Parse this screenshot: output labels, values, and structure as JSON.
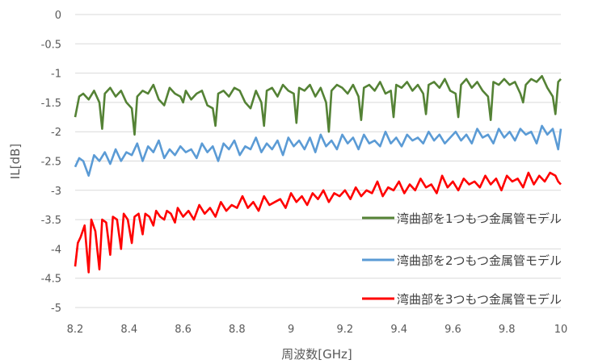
{
  "chart_data": {
    "type": "line",
    "xlabel": "周波数[GHz]",
    "ylabel": "IL[dB]",
    "xlim": [
      8.2,
      10
    ],
    "ylim": [
      -5,
      0
    ],
    "xticks": [
      "8.2",
      "8.4",
      "8.6",
      "8.8",
      "9",
      "9.2",
      "9.4",
      "9.6",
      "9.8",
      "10"
    ],
    "yticks": [
      "0",
      "-0.5",
      "-1",
      "-1.5",
      "-2",
      "-2.5",
      "-3",
      "-3.5",
      "-4",
      "-4.5",
      "-5"
    ],
    "grid": "horizontal",
    "legend_position": "bottom-right",
    "series": [
      {
        "name": "湾曲部を1つもつ金属管モデル",
        "color": "#548235",
        "x": [
          8.2,
          8.215,
          8.23,
          8.25,
          8.27,
          8.29,
          8.3,
          8.31,
          8.33,
          8.35,
          8.37,
          8.39,
          8.41,
          8.42,
          8.43,
          8.45,
          8.47,
          8.49,
          8.51,
          8.53,
          8.55,
          8.57,
          8.59,
          8.6,
          8.61,
          8.63,
          8.65,
          8.67,
          8.69,
          8.71,
          8.72,
          8.73,
          8.75,
          8.77,
          8.79,
          8.81,
          8.83,
          8.85,
          8.87,
          8.89,
          8.9,
          8.91,
          8.93,
          8.95,
          8.97,
          8.99,
          9.01,
          9.02,
          9.03,
          9.05,
          9.07,
          9.09,
          9.11,
          9.13,
          9.14,
          9.15,
          9.17,
          9.19,
          9.21,
          9.23,
          9.25,
          9.26,
          9.27,
          9.29,
          9.31,
          9.33,
          9.35,
          9.37,
          9.38,
          9.39,
          9.41,
          9.43,
          9.45,
          9.47,
          9.49,
          9.5,
          9.51,
          9.53,
          9.55,
          9.57,
          9.59,
          9.61,
          9.62,
          9.63,
          9.65,
          9.67,
          9.69,
          9.71,
          9.73,
          9.74,
          9.75,
          9.77,
          9.79,
          9.81,
          9.83,
          9.85,
          9.86,
          9.87,
          9.89,
          9.91,
          9.93,
          9.95,
          9.97,
          9.98,
          9.99,
          10.0
        ],
        "y": [
          -1.75,
          -1.4,
          -1.35,
          -1.45,
          -1.3,
          -1.5,
          -1.95,
          -1.35,
          -1.25,
          -1.4,
          -1.3,
          -1.5,
          -1.6,
          -2.05,
          -1.4,
          -1.3,
          -1.35,
          -1.2,
          -1.45,
          -1.55,
          -1.25,
          -1.35,
          -1.4,
          -1.5,
          -1.3,
          -1.45,
          -1.35,
          -1.3,
          -1.55,
          -1.6,
          -1.9,
          -1.35,
          -1.3,
          -1.4,
          -1.25,
          -1.3,
          -1.5,
          -1.6,
          -1.3,
          -1.5,
          -1.9,
          -1.3,
          -1.25,
          -1.4,
          -1.2,
          -1.3,
          -1.35,
          -1.85,
          -1.25,
          -1.3,
          -1.2,
          -1.4,
          -1.25,
          -1.5,
          -2.0,
          -1.3,
          -1.2,
          -1.25,
          -1.35,
          -1.2,
          -1.4,
          -1.8,
          -1.25,
          -1.2,
          -1.3,
          -1.15,
          -1.35,
          -1.3,
          -1.75,
          -1.2,
          -1.25,
          -1.15,
          -1.3,
          -1.2,
          -1.35,
          -1.7,
          -1.2,
          -1.15,
          -1.25,
          -1.1,
          -1.3,
          -1.35,
          -1.75,
          -1.2,
          -1.1,
          -1.25,
          -1.15,
          -1.3,
          -1.4,
          -1.8,
          -1.15,
          -1.2,
          -1.1,
          -1.2,
          -1.15,
          -1.35,
          -1.5,
          -1.2,
          -1.1,
          -1.15,
          -1.05,
          -1.25,
          -1.4,
          -1.7,
          -1.15,
          -1.1
        ]
      },
      {
        "name": "湾曲部を2つもつ金属管モデル",
        "color": "#5B9BD5",
        "x": [
          8.2,
          8.215,
          8.23,
          8.25,
          8.27,
          8.29,
          8.31,
          8.33,
          8.35,
          8.37,
          8.39,
          8.41,
          8.43,
          8.45,
          8.47,
          8.49,
          8.51,
          8.53,
          8.55,
          8.57,
          8.59,
          8.61,
          8.63,
          8.65,
          8.67,
          8.69,
          8.71,
          8.73,
          8.75,
          8.77,
          8.79,
          8.81,
          8.83,
          8.85,
          8.87,
          8.89,
          8.91,
          8.93,
          8.95,
          8.97,
          8.99,
          9.01,
          9.03,
          9.05,
          9.07,
          9.09,
          9.11,
          9.13,
          9.15,
          9.17,
          9.19,
          9.21,
          9.23,
          9.25,
          9.27,
          9.29,
          9.31,
          9.33,
          9.35,
          9.37,
          9.39,
          9.41,
          9.43,
          9.45,
          9.47,
          9.49,
          9.51,
          9.53,
          9.55,
          9.57,
          9.59,
          9.61,
          9.63,
          9.65,
          9.67,
          9.69,
          9.71,
          9.73,
          9.75,
          9.77,
          9.79,
          9.81,
          9.83,
          9.85,
          9.87,
          9.89,
          9.91,
          9.93,
          9.95,
          9.97,
          9.99,
          10.0
        ],
        "y": [
          -2.6,
          -2.45,
          -2.5,
          -2.75,
          -2.4,
          -2.5,
          -2.35,
          -2.55,
          -2.3,
          -2.5,
          -2.35,
          -2.4,
          -2.2,
          -2.5,
          -2.25,
          -2.35,
          -2.15,
          -2.45,
          -2.3,
          -2.4,
          -2.25,
          -2.35,
          -2.3,
          -2.45,
          -2.2,
          -2.35,
          -2.25,
          -2.5,
          -2.2,
          -2.3,
          -2.15,
          -2.4,
          -2.25,
          -2.3,
          -2.1,
          -2.35,
          -2.2,
          -2.3,
          -2.15,
          -2.4,
          -2.1,
          -2.25,
          -2.15,
          -2.3,
          -2.1,
          -2.35,
          -2.05,
          -2.25,
          -2.15,
          -2.3,
          -2.05,
          -2.2,
          -2.1,
          -2.3,
          -2.05,
          -2.2,
          -2.15,
          -2.25,
          -2.0,
          -2.2,
          -2.1,
          -2.25,
          -2.05,
          -2.15,
          -2.1,
          -2.2,
          -2.0,
          -2.15,
          -2.05,
          -2.2,
          -2.1,
          -2.0,
          -2.15,
          -2.05,
          -2.2,
          -1.95,
          -2.1,
          -2.05,
          -2.2,
          -1.95,
          -2.1,
          -2.0,
          -2.15,
          -1.95,
          -2.05,
          -2.0,
          -2.2,
          -1.9,
          -2.05,
          -1.95,
          -2.3,
          -1.95
        ]
      },
      {
        "name": "湾曲部を3つもつ金属管モデル",
        "color": "#FF0000",
        "x": [
          8.2,
          8.21,
          8.22,
          8.235,
          8.25,
          8.26,
          8.275,
          8.29,
          8.3,
          8.315,
          8.33,
          8.34,
          8.355,
          8.37,
          8.38,
          8.395,
          8.41,
          8.42,
          8.435,
          8.45,
          8.46,
          8.475,
          8.49,
          8.5,
          8.515,
          8.53,
          8.54,
          8.555,
          8.57,
          8.58,
          8.6,
          8.62,
          8.64,
          8.66,
          8.68,
          8.7,
          8.72,
          8.74,
          8.76,
          8.78,
          8.8,
          8.82,
          8.84,
          8.86,
          8.88,
          8.9,
          8.92,
          8.94,
          8.96,
          8.98,
          9.0,
          9.02,
          9.04,
          9.06,
          9.08,
          9.1,
          9.12,
          9.14,
          9.16,
          9.18,
          9.2,
          9.22,
          9.24,
          9.26,
          9.28,
          9.3,
          9.32,
          9.34,
          9.36,
          9.38,
          9.4,
          9.42,
          9.44,
          9.46,
          9.48,
          9.5,
          9.52,
          9.54,
          9.56,
          9.58,
          9.6,
          9.62,
          9.64,
          9.66,
          9.68,
          9.7,
          9.72,
          9.74,
          9.76,
          9.78,
          9.8,
          9.82,
          9.84,
          9.86,
          9.88,
          9.9,
          9.92,
          9.94,
          9.96,
          9.98,
          9.99,
          10.0
        ],
        "y": [
          -4.3,
          -3.9,
          -3.8,
          -3.6,
          -4.4,
          -3.5,
          -3.7,
          -4.35,
          -3.5,
          -3.55,
          -4.1,
          -3.45,
          -3.5,
          -4.0,
          -3.4,
          -3.5,
          -3.9,
          -3.45,
          -3.4,
          -3.75,
          -3.4,
          -3.45,
          -3.6,
          -3.35,
          -3.45,
          -3.5,
          -3.35,
          -3.4,
          -3.55,
          -3.3,
          -3.45,
          -3.35,
          -3.5,
          -3.25,
          -3.4,
          -3.3,
          -3.45,
          -3.2,
          -3.35,
          -3.25,
          -3.3,
          -3.1,
          -3.3,
          -3.2,
          -3.35,
          -3.1,
          -3.25,
          -3.2,
          -3.15,
          -3.3,
          -3.05,
          -3.2,
          -3.1,
          -3.25,
          -3.05,
          -3.15,
          -3.0,
          -3.2,
          -3.05,
          -3.1,
          -3.0,
          -3.15,
          -2.95,
          -3.1,
          -3.0,
          -3.05,
          -2.85,
          -3.1,
          -2.95,
          -3.0,
          -2.85,
          -3.05,
          -2.9,
          -3.0,
          -2.8,
          -2.95,
          -2.9,
          -3.05,
          -2.75,
          -2.95,
          -2.85,
          -3.0,
          -2.8,
          -2.9,
          -2.85,
          -2.95,
          -2.75,
          -2.9,
          -2.8,
          -3.0,
          -2.75,
          -2.85,
          -2.8,
          -2.95,
          -2.7,
          -2.9,
          -2.75,
          -2.85,
          -2.7,
          -2.75,
          -2.85,
          -2.9
        ]
      }
    ]
  }
}
